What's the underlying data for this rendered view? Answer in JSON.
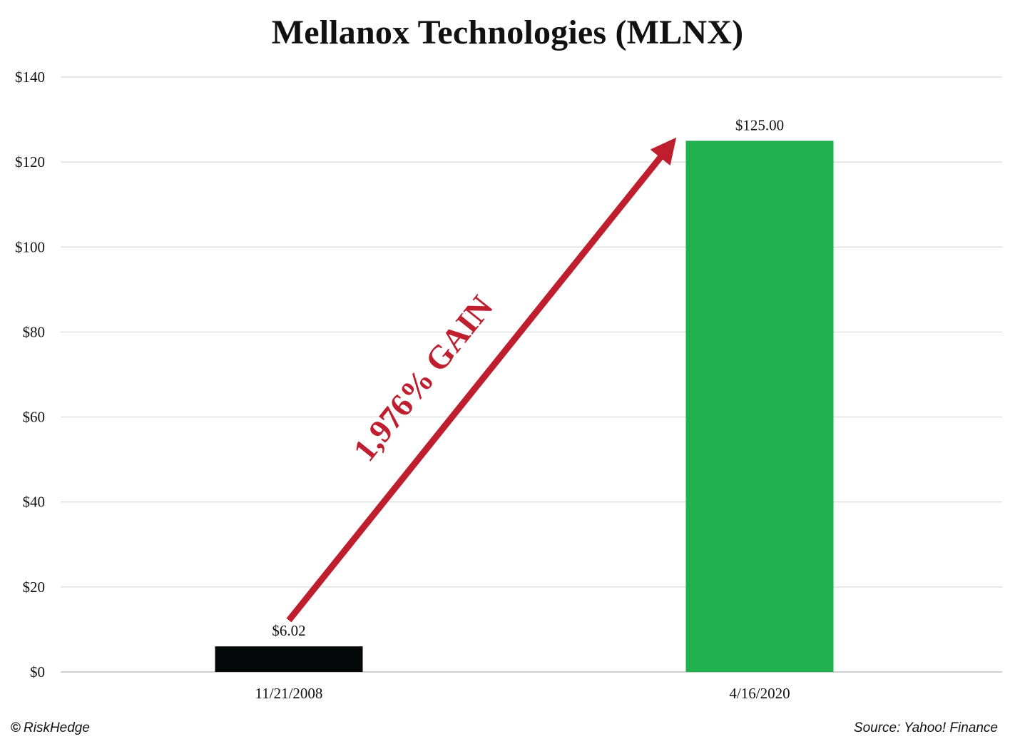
{
  "chart_data": {
    "type": "bar",
    "title": "Mellanox Technologies (MLNX)",
    "categories": [
      "11/21/2008",
      "4/16/2020"
    ],
    "values": [
      6.02,
      125.0
    ],
    "data_labels": [
      "$6.02",
      "$125.00"
    ],
    "bar_colors": [
      "#040808",
      "#21b14f"
    ],
    "xlabel": "",
    "ylabel": "",
    "ylim": [
      0,
      140
    ],
    "y_ticks": [
      0,
      20,
      40,
      60,
      80,
      100,
      120,
      140
    ],
    "y_tick_labels": [
      "$0",
      "$20",
      "$40",
      "$60",
      "$80",
      "$100",
      "$120",
      "$140"
    ],
    "grid": true,
    "legend": "none",
    "annotation": {
      "text": "1,976% GAIN",
      "color": "#be1e2d",
      "type": "arrow",
      "from_value": 12.5,
      "to_value": 126.5
    }
  },
  "footer": {
    "copyright_symbol": "©",
    "brand": "RiskHedge",
    "source": "Source: Yahoo! Finance"
  },
  "colors": {
    "grid": "#d9d9d9",
    "axis": "#bfbfbf",
    "accent_red": "#be1e2d",
    "green_bar": "#21b14f",
    "black_bar": "#040808"
  }
}
